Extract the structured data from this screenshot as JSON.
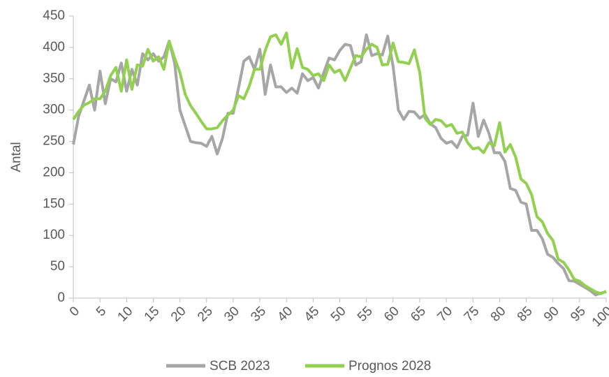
{
  "chart_data": {
    "type": "line",
    "y_label": "Antal",
    "x": [
      0,
      1,
      2,
      3,
      4,
      5,
      6,
      7,
      8,
      9,
      10,
      11,
      12,
      13,
      14,
      15,
      16,
      17,
      18,
      19,
      20,
      21,
      22,
      23,
      24,
      25,
      26,
      27,
      28,
      29,
      30,
      31,
      32,
      33,
      34,
      35,
      36,
      37,
      38,
      39,
      40,
      41,
      42,
      43,
      44,
      45,
      46,
      47,
      48,
      49,
      50,
      51,
      52,
      53,
      54,
      55,
      56,
      57,
      58,
      59,
      60,
      61,
      62,
      63,
      64,
      65,
      66,
      67,
      68,
      69,
      70,
      71,
      72,
      73,
      74,
      75,
      76,
      77,
      78,
      79,
      80,
      81,
      82,
      83,
      84,
      85,
      86,
      87,
      88,
      89,
      90,
      91,
      92,
      93,
      94,
      95,
      96,
      97,
      98,
      99,
      100
    ],
    "series": [
      {
        "name": "SCB 2023",
        "color": "#a6a6a6",
        "values": [
          245,
          290,
          315,
          340,
          300,
          362,
          310,
          350,
          345,
          375,
          330,
          365,
          340,
          390,
          380,
          390,
          378,
          385,
          410,
          375,
          300,
          275,
          250,
          248,
          247,
          242,
          258,
          230,
          255,
          295,
          295,
          335,
          378,
          385,
          365,
          397,
          325,
          372,
          337,
          337,
          328,
          335,
          327,
          358,
          347,
          352,
          335,
          360,
          383,
          380,
          395,
          405,
          403,
          372,
          377,
          420,
          387,
          390,
          388,
          418,
          370,
          300,
          285,
          298,
          297,
          287,
          293,
          278,
          272,
          255,
          247,
          250,
          240,
          258,
          260,
          311,
          258,
          284,
          263,
          232,
          232,
          218,
          175,
          172,
          153,
          150,
          108,
          108,
          95,
          70,
          65,
          55,
          47,
          28,
          27,
          22,
          17,
          12,
          5,
          8,
          10
        ]
      },
      {
        "name": "Prognos 2028",
        "color": "#92d050",
        "values": [
          285,
          298,
          308,
          312,
          318,
          318,
          330,
          355,
          368,
          330,
          380,
          333,
          372,
          370,
          397,
          378,
          385,
          365,
          410,
          383,
          360,
          325,
          307,
          295,
          282,
          270,
          270,
          272,
          283,
          292,
          300,
          323,
          318,
          338,
          365,
          365,
          395,
          417,
          420,
          405,
          423,
          367,
          398,
          368,
          365,
          355,
          358,
          347,
          372,
          360,
          364,
          347,
          367,
          387,
          385,
          397,
          405,
          400,
          372,
          373,
          407,
          377,
          376,
          374,
          396,
          360,
          287,
          277,
          285,
          283,
          274,
          277,
          263,
          265,
          248,
          238,
          240,
          232,
          248,
          243,
          280,
          233,
          245,
          225,
          190,
          183,
          165,
          130,
          122,
          103,
          92,
          62,
          57,
          45,
          30,
          27,
          20,
          15,
          10,
          7,
          11
        ]
      }
    ],
    "xlim": [
      0,
      100
    ],
    "xticks": [
      0,
      5,
      10,
      15,
      20,
      25,
      30,
      35,
      40,
      45,
      50,
      55,
      60,
      65,
      70,
      75,
      80,
      85,
      90,
      95,
      100
    ],
    "ylim": [
      0,
      450
    ],
    "yticks": [
      0,
      50,
      100,
      150,
      200,
      250,
      300,
      350,
      400,
      450
    ],
    "grid": false,
    "legend": "bottom"
  }
}
